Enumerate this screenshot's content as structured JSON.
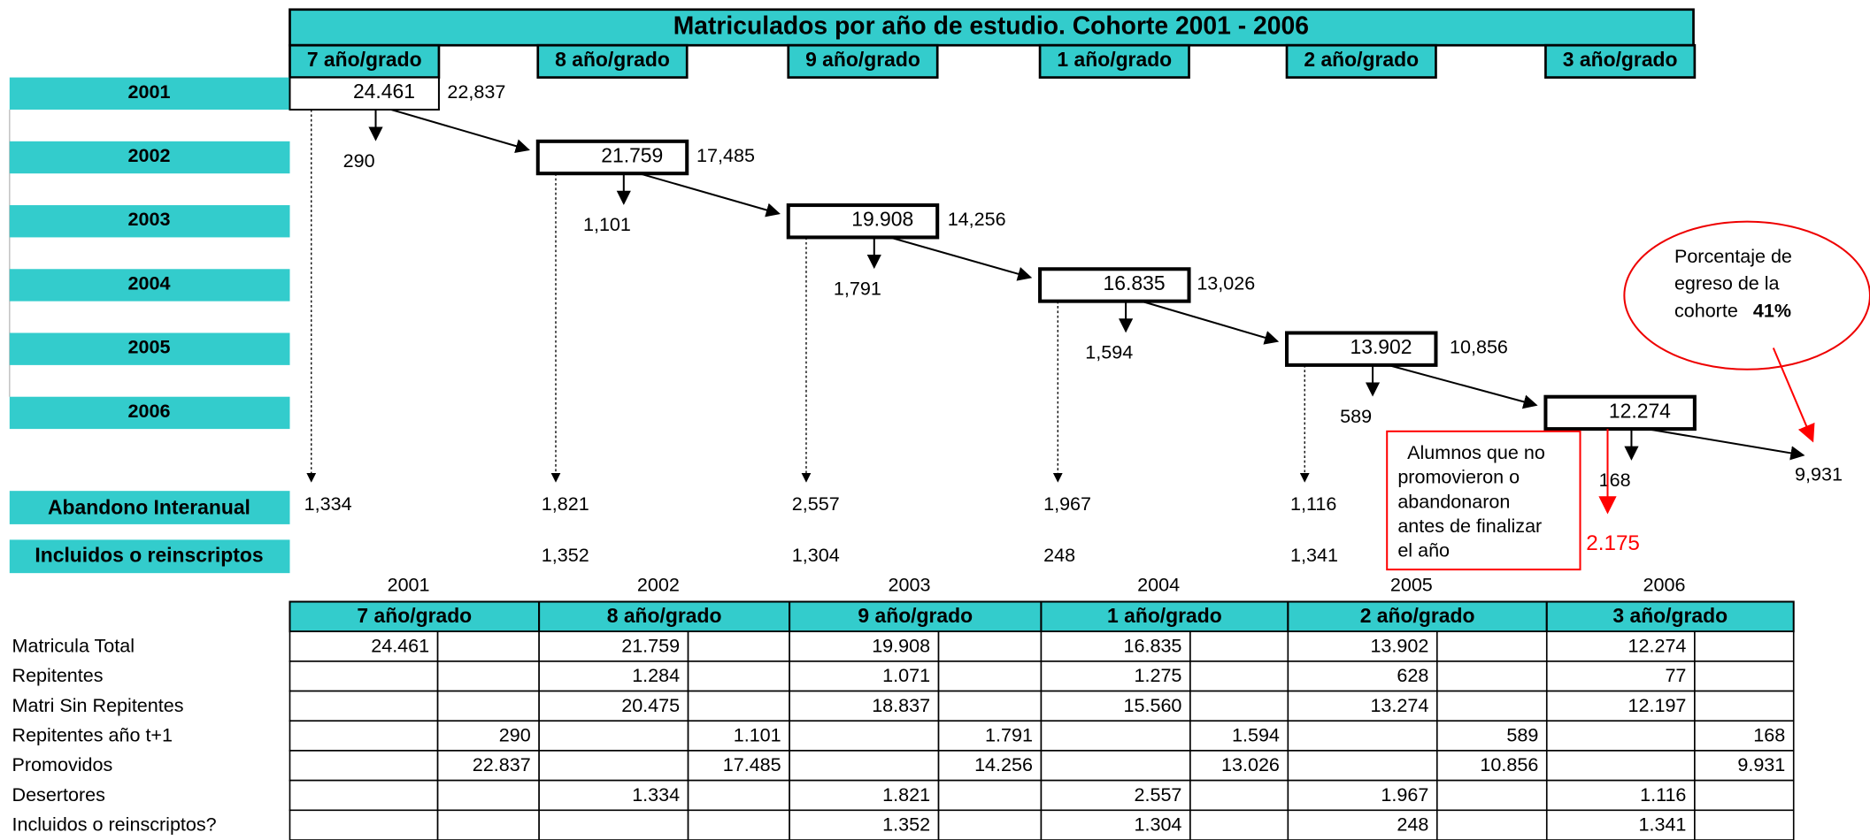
{
  "title": "Matriculados por año de estudio. Cohorte 2001 - 2006",
  "grades": [
    "7 año/grado",
    "8 año/grado",
    "9 año/grado",
    "1 año/grado",
    "2 año/grado",
    "3 año/grado"
  ],
  "years": [
    "2001",
    "2002",
    "2003",
    "2004",
    "2005",
    "2006"
  ],
  "enrolled": [
    "24.461",
    "21.759",
    "19.908",
    "16.835",
    "13.902",
    "12.274"
  ],
  "promoted": [
    "22,837",
    "17,485",
    "14,256",
    "13,026",
    "10,856",
    "9,931"
  ],
  "repeaters": [
    "290",
    "1,101",
    "1,791",
    "1,594",
    "589",
    "168"
  ],
  "dropout": {
    "label": "Abandono Interanual",
    "values": [
      "1,334",
      "1,821",
      "2,557",
      "1,967",
      "1,116"
    ]
  },
  "included": {
    "label": "Incluidos o reinscriptos",
    "values": [
      null,
      "1,352",
      "1,304",
      "248",
      "1,341"
    ]
  },
  "note": {
    "lines": [
      "Alumnos que no",
      "promovieron o",
      "abandonaron",
      "antes de finalizar",
      "el año"
    ],
    "value": "2.175"
  },
  "callout": {
    "lines": [
      "Porcentaje de",
      "egreso de la",
      "cohorte"
    ],
    "bold": "41%"
  },
  "table": {
    "row_labels": [
      "Matricula Total",
      "Repitentes",
      "Matri Sin Repitentes",
      "Repitentes año t+1",
      "Promovidos",
      "Desertores",
      "Incluidos o reinscriptos?"
    ],
    "rows": [
      [
        "24.461",
        null,
        "21.759",
        null,
        "19.908",
        null,
        "16.835",
        null,
        "13.902",
        null,
        "12.274",
        null
      ],
      [
        null,
        null,
        "1.284",
        null,
        "1.071",
        null,
        "1.275",
        null,
        "628",
        null,
        "77",
        null
      ],
      [
        null,
        null,
        "20.475",
        null,
        "18.837",
        null,
        "15.560",
        null,
        "13.274",
        null,
        "12.197",
        null
      ],
      [
        null,
        "290",
        null,
        "1.101",
        null,
        "1.791",
        null,
        "1.594",
        null,
        "589",
        null,
        "168"
      ],
      [
        null,
        "22.837",
        null,
        "17.485",
        null,
        "14.256",
        null,
        "13.026",
        null,
        "10.856",
        null,
        "9.931"
      ],
      [
        null,
        null,
        "1.334",
        null,
        "1.821",
        null,
        "2.557",
        null,
        "1.967",
        null,
        "1.116",
        null
      ],
      [
        null,
        null,
        null,
        null,
        "1.352",
        null,
        "1.304",
        null,
        "248",
        null,
        "1.341",
        null
      ]
    ]
  }
}
